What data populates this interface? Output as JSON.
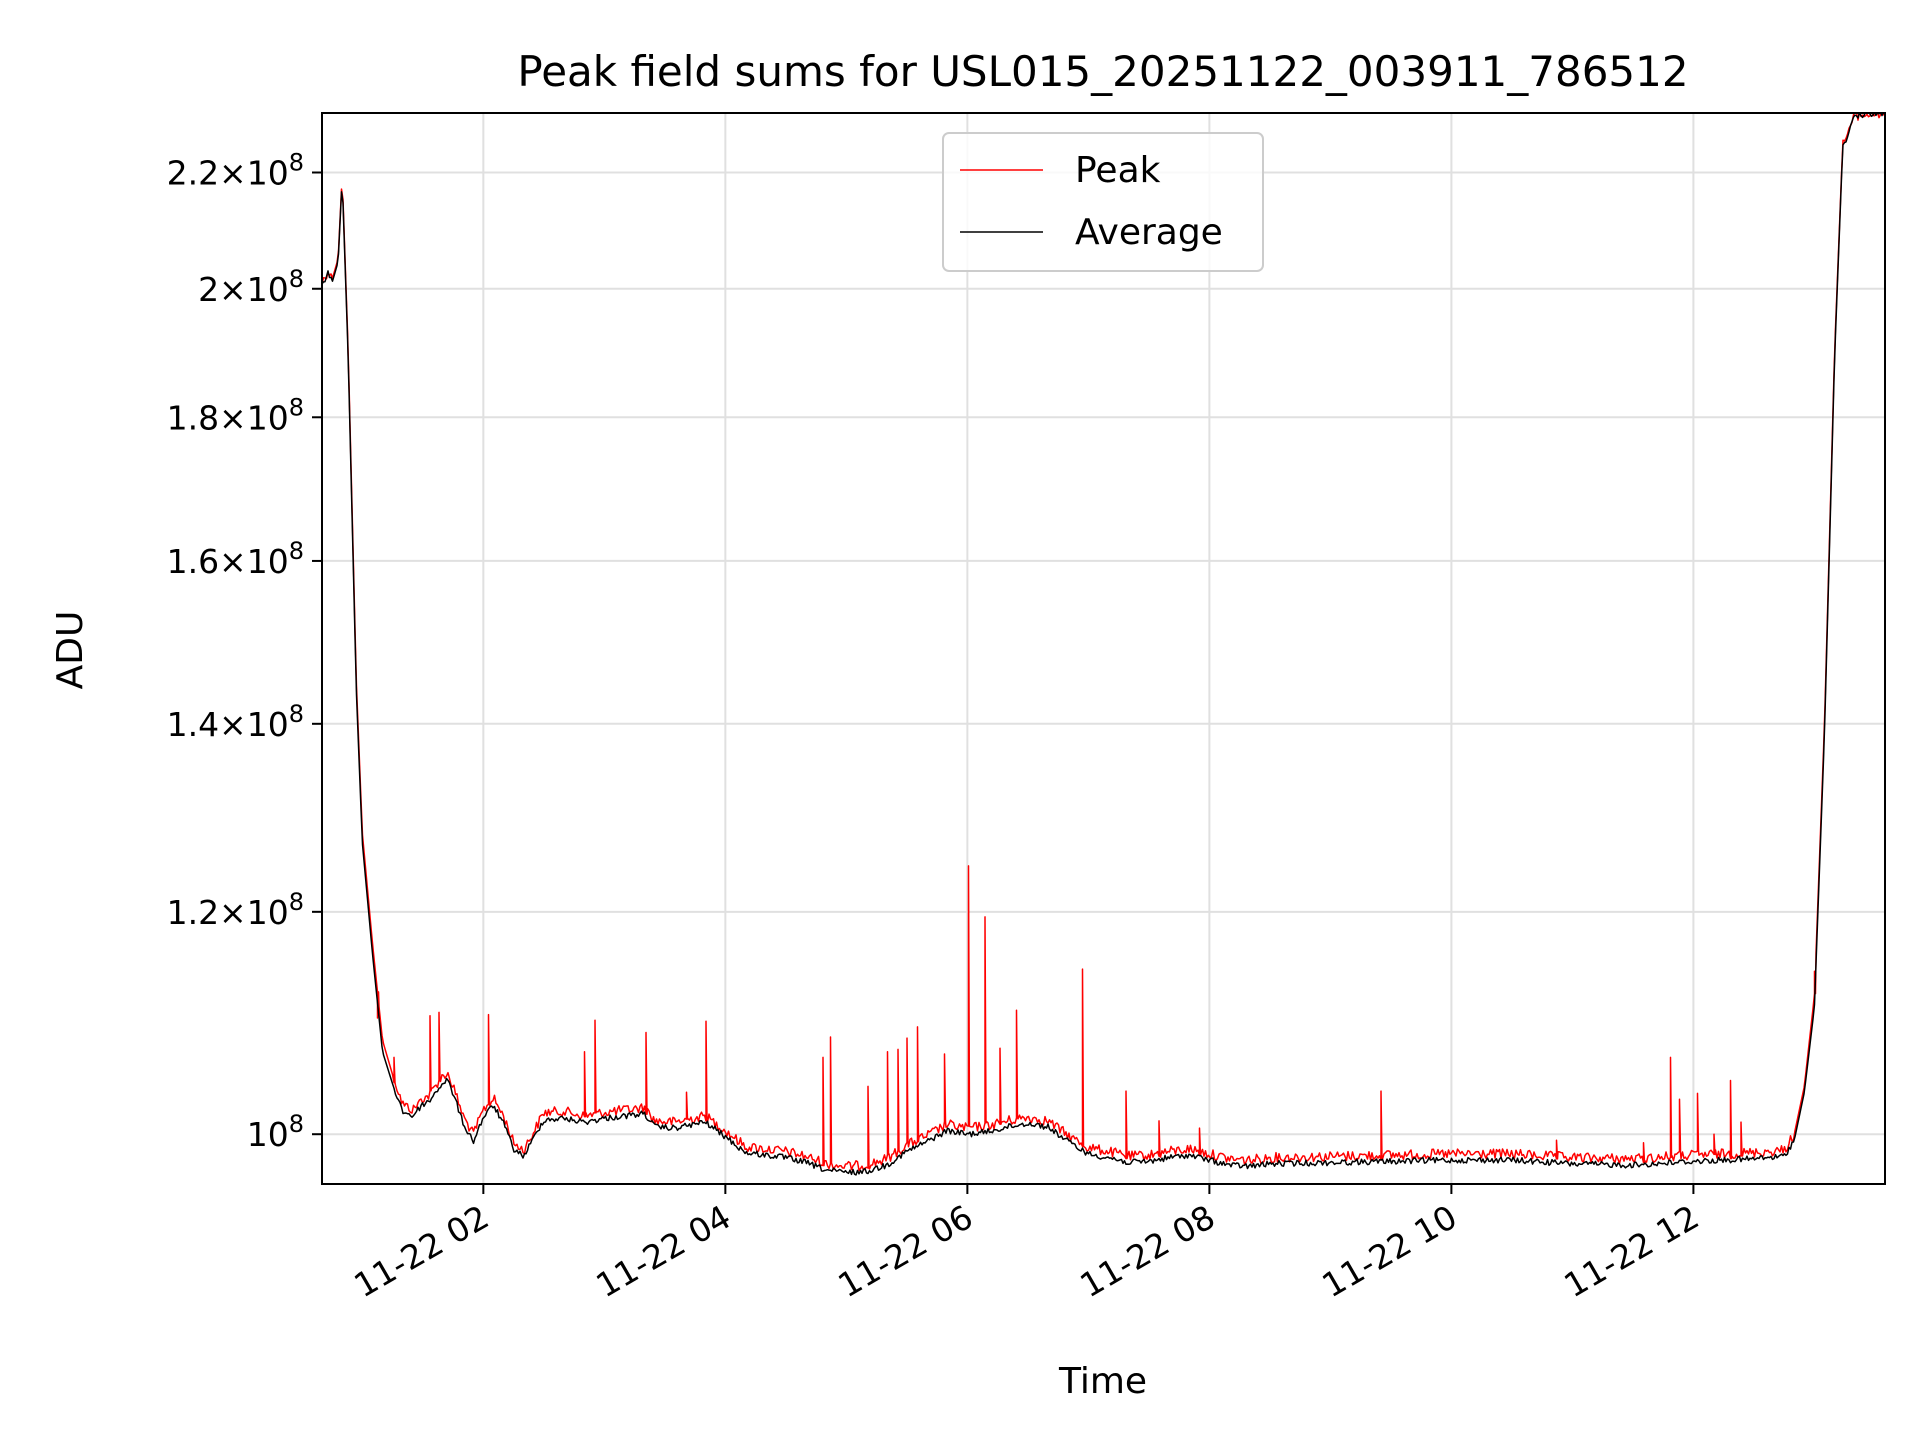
{
  "chart_data": {
    "type": "line",
    "title": "Peak field sums for USL015_20251122_003911_786512",
    "xlabel": "Time",
    "ylabel": "ADU",
    "y_scale": "log",
    "grid": true,
    "legend_position": "top-center",
    "xlim": [
      "2025-11-22 00:40",
      "2025-11-22 13:35"
    ],
    "ylim": [
      96000000,
      231000000
    ],
    "x_ticks": [
      {
        "t": "2025-11-22 02:00",
        "label": "11-22 02"
      },
      {
        "t": "2025-11-22 04:00",
        "label": "11-22 04"
      },
      {
        "t": "2025-11-22 06:00",
        "label": "11-22 06"
      },
      {
        "t": "2025-11-22 08:00",
        "label": "11-22 08"
      },
      {
        "t": "2025-11-22 10:00",
        "label": "11-22 10"
      },
      {
        "t": "2025-11-22 12:00",
        "label": "11-22 12"
      }
    ],
    "y_ticks": [
      {
        "value": 100000000,
        "mantissa": "",
        "exponent": "8"
      },
      {
        "value": 120000000,
        "mantissa": "1.2",
        "exponent": "8"
      },
      {
        "value": 140000000,
        "mantissa": "1.4",
        "exponent": "8"
      },
      {
        "value": 160000000,
        "mantissa": "1.6",
        "exponent": "8"
      },
      {
        "value": 180000000,
        "mantissa": "1.8",
        "exponent": "8"
      },
      {
        "value": 200000000,
        "mantissa": "2",
        "exponent": "8"
      },
      {
        "value": 220000000,
        "mantissa": "2.2",
        "exponent": "8"
      }
    ],
    "series": [
      {
        "name": "Peak",
        "color": "#ff0000",
        "points": [
          [
            "2025-11-22 00:40",
            201000000
          ],
          [
            "2025-11-22 00:43",
            203000000
          ],
          [
            "2025-11-22 00:45",
            201500000
          ],
          [
            "2025-11-22 00:48",
            205000000
          ],
          [
            "2025-11-22 00:50",
            219500000
          ],
          [
            "2025-11-22 00:53",
            190000000
          ],
          [
            "2025-11-22 00:57",
            145000000
          ],
          [
            "2025-11-22 01:00",
            128000000
          ],
          [
            "2025-11-22 01:05",
            117000000
          ],
          [
            "2025-11-22 01:10",
            108000000
          ],
          [
            "2025-11-22 01:15",
            105000000
          ],
          [
            "2025-11-22 01:20",
            102500000
          ],
          [
            "2025-11-22 01:25",
            102000000
          ],
          [
            "2025-11-22 01:30",
            103000000
          ],
          [
            "2025-11-22 01:33",
            103200000
          ],
          [
            "2025-11-22 01:38",
            104500000
          ],
          [
            "2025-11-22 01:42",
            105200000
          ],
          [
            "2025-11-22 01:45",
            104000000
          ],
          [
            "2025-11-22 01:50",
            101500000
          ],
          [
            "2025-11-22 01:55",
            100000000
          ],
          [
            "2025-11-22 02:00",
            102000000
          ],
          [
            "2025-11-22 02:05",
            103000000
          ],
          [
            "2025-11-22 02:10",
            101500000
          ],
          [
            "2025-11-22 02:15",
            99300000
          ],
          [
            "2025-11-22 02:20",
            98700000
          ],
          [
            "2025-11-22 02:25",
            100200000
          ],
          [
            "2025-11-22 02:30",
            101800000
          ],
          [
            "2025-11-22 02:40",
            101900000
          ],
          [
            "2025-11-22 02:50",
            101500000
          ],
          [
            "2025-11-22 03:00",
            101800000
          ],
          [
            "2025-11-22 03:10",
            102000000
          ],
          [
            "2025-11-22 03:20",
            102200000
          ],
          [
            "2025-11-22 03:25",
            101100000
          ],
          [
            "2025-11-22 03:35",
            101000000
          ],
          [
            "2025-11-22 03:50",
            101500000
          ],
          [
            "2025-11-22 04:00",
            100300000
          ],
          [
            "2025-11-22 04:10",
            99000000
          ],
          [
            "2025-11-22 04:20",
            98800000
          ],
          [
            "2025-11-22 04:30",
            98600000
          ],
          [
            "2025-11-22 04:40",
            98200000
          ],
          [
            "2025-11-22 04:50",
            97600000
          ],
          [
            "2025-11-22 05:00",
            97400000
          ],
          [
            "2025-11-22 05:10",
            97500000
          ],
          [
            "2025-11-22 05:20",
            98000000
          ],
          [
            "2025-11-22 05:30",
            99100000
          ],
          [
            "2025-11-22 05:40",
            99900000
          ],
          [
            "2025-11-22 05:50",
            100800000
          ],
          [
            "2025-11-22 06:00",
            100500000
          ],
          [
            "2025-11-22 06:10",
            100700000
          ],
          [
            "2025-11-22 06:20",
            101100000
          ],
          [
            "2025-11-22 06:30",
            101400000
          ],
          [
            "2025-11-22 06:40",
            101100000
          ],
          [
            "2025-11-22 06:50",
            99900000
          ],
          [
            "2025-11-22 07:00",
            98900000
          ],
          [
            "2025-11-22 07:10",
            98600000
          ],
          [
            "2025-11-22 07:20",
            98200000
          ],
          [
            "2025-11-22 07:30",
            98300000
          ],
          [
            "2025-11-22 07:40",
            98600000
          ],
          [
            "2025-11-22 07:50",
            98800000
          ],
          [
            "2025-11-22 08:00",
            98400000
          ],
          [
            "2025-11-22 08:10",
            98000000
          ],
          [
            "2025-11-22 08:20",
            97900000
          ],
          [
            "2025-11-22 08:30",
            98100000
          ],
          [
            "2025-11-22 09:00",
            98200000
          ],
          [
            "2025-11-22 09:30",
            98300000
          ],
          [
            "2025-11-22 10:00",
            98400000
          ],
          [
            "2025-11-22 10:30",
            98400000
          ],
          [
            "2025-11-22 11:00",
            98100000
          ],
          [
            "2025-11-22 11:30",
            98000000
          ],
          [
            "2025-11-22 12:00",
            98300000
          ],
          [
            "2025-11-22 12:30",
            98500000
          ],
          [
            "2025-11-22 12:45",
            98700000
          ],
          [
            "2025-11-22 12:50",
            100000000
          ],
          [
            "2025-11-22 12:55",
            104000000
          ],
          [
            "2025-11-22 13:00",
            112000000
          ],
          [
            "2025-11-22 13:05",
            140000000
          ],
          [
            "2025-11-22 13:10",
            190000000
          ],
          [
            "2025-11-22 13:14",
            225000000
          ],
          [
            "2025-11-22 13:20",
            230500000
          ],
          [
            "2025-11-22 13:35",
            231000000
          ]
        ],
        "spikes": [
          [
            "2025-11-22 01:07",
            110000000
          ],
          [
            "2025-11-22 01:15",
            106500000
          ],
          [
            "2025-11-22 01:33",
            110200000
          ],
          [
            "2025-11-22 01:38",
            110500000
          ],
          [
            "2025-11-22 02:02",
            110300000
          ],
          [
            "2025-11-22 02:50",
            107000000
          ],
          [
            "2025-11-22 02:55",
            109800000
          ],
          [
            "2025-11-22 03:20",
            108700000
          ],
          [
            "2025-11-22 03:40",
            103500000
          ],
          [
            "2025-11-22 03:50",
            109700000
          ],
          [
            "2025-11-22 04:48",
            106500000
          ],
          [
            "2025-11-22 04:52",
            108300000
          ],
          [
            "2025-11-22 05:10",
            104000000
          ],
          [
            "2025-11-22 05:20",
            107000000
          ],
          [
            "2025-11-22 05:25",
            107200000
          ],
          [
            "2025-11-22 05:30",
            108200000
          ],
          [
            "2025-11-22 05:35",
            109200000
          ],
          [
            "2025-11-22 05:48",
            106800000
          ],
          [
            "2025-11-22 06:00",
            124600000
          ],
          [
            "2025-11-22 06:08",
            119500000
          ],
          [
            "2025-11-22 06:16",
            107300000
          ],
          [
            "2025-11-22 06:24",
            110700000
          ],
          [
            "2025-11-22 06:57",
            114500000
          ],
          [
            "2025-11-22 07:18",
            103600000
          ],
          [
            "2025-11-22 07:35",
            101100000
          ],
          [
            "2025-11-22 07:55",
            100500000
          ],
          [
            "2025-11-22 09:25",
            103600000
          ],
          [
            "2025-11-22 10:52",
            99500000
          ],
          [
            "2025-11-22 11:35",
            99300000
          ],
          [
            "2025-11-22 11:48",
            106500000
          ],
          [
            "2025-11-22 11:53",
            102900000
          ],
          [
            "2025-11-22 12:02",
            103400000
          ],
          [
            "2025-11-22 12:10",
            100000000
          ],
          [
            "2025-11-22 12:18",
            104500000
          ],
          [
            "2025-11-22 12:23",
            101000000
          ],
          [
            "2025-11-22 13:00",
            114300000
          ]
        ]
      },
      {
        "name": "Average",
        "color": "#000000",
        "points": [
          [
            "2025-11-22 00:40",
            200500000
          ],
          [
            "2025-11-22 00:43",
            202500000
          ],
          [
            "2025-11-22 00:45",
            201000000
          ],
          [
            "2025-11-22 00:48",
            204500000
          ],
          [
            "2025-11-22 00:50",
            219000000
          ],
          [
            "2025-11-22 00:53",
            189000000
          ],
          [
            "2025-11-22 00:57",
            144000000
          ],
          [
            "2025-11-22 01:00",
            127000000
          ],
          [
            "2025-11-22 01:05",
            116000000
          ],
          [
            "2025-11-22 01:10",
            107000000
          ],
          [
            "2025-11-22 01:15",
            104200000
          ],
          [
            "2025-11-22 01:20",
            101900000
          ],
          [
            "2025-11-22 01:25",
            101500000
          ],
          [
            "2025-11-22 01:30",
            102500000
          ],
          [
            "2025-11-22 01:33",
            102700000
          ],
          [
            "2025-11-22 01:38",
            103900000
          ],
          [
            "2025-11-22 01:42",
            104600000
          ],
          [
            "2025-11-22 01:45",
            103400000
          ],
          [
            "2025-11-22 01:50",
            100900000
          ],
          [
            "2025-11-22 01:55",
            99400000
          ],
          [
            "2025-11-22 02:00",
            101400000
          ],
          [
            "2025-11-22 02:05",
            102400000
          ],
          [
            "2025-11-22 02:10",
            100900000
          ],
          [
            "2025-11-22 02:15",
            98800000
          ],
          [
            "2025-11-22 02:20",
            98200000
          ],
          [
            "2025-11-22 02:25",
            99700000
          ],
          [
            "2025-11-22 02:30",
            101200000
          ],
          [
            "2025-11-22 02:40",
            101300000
          ],
          [
            "2025-11-22 02:50",
            101000000
          ],
          [
            "2025-11-22 03:00",
            101300000
          ],
          [
            "2025-11-22 03:10",
            101500000
          ],
          [
            "2025-11-22 03:20",
            101700000
          ],
          [
            "2025-11-22 03:25",
            100600000
          ],
          [
            "2025-11-22 03:35",
            100500000
          ],
          [
            "2025-11-22 03:50",
            101000000
          ],
          [
            "2025-11-22 04:00",
            99800000
          ],
          [
            "2025-11-22 04:10",
            98500000
          ],
          [
            "2025-11-22 04:20",
            98300000
          ],
          [
            "2025-11-22 04:30",
            98100000
          ],
          [
            "2025-11-22 04:40",
            97700000
          ],
          [
            "2025-11-22 04:50",
            97100000
          ],
          [
            "2025-11-22 05:00",
            96900000
          ],
          [
            "2025-11-22 05:10",
            97000000
          ],
          [
            "2025-11-22 05:20",
            97500000
          ],
          [
            "2025-11-22 05:30",
            98600000
          ],
          [
            "2025-11-22 05:40",
            99400000
          ],
          [
            "2025-11-22 05:50",
            100300000
          ],
          [
            "2025-11-22 06:00",
            100000000
          ],
          [
            "2025-11-22 06:10",
            100200000
          ],
          [
            "2025-11-22 06:20",
            100600000
          ],
          [
            "2025-11-22 06:30",
            100900000
          ],
          [
            "2025-11-22 06:40",
            100600000
          ],
          [
            "2025-11-22 06:50",
            99400000
          ],
          [
            "2025-11-22 07:00",
            98400000
          ],
          [
            "2025-11-22 07:10",
            98100000
          ],
          [
            "2025-11-22 07:20",
            97700000
          ],
          [
            "2025-11-22 07:30",
            97800000
          ],
          [
            "2025-11-22 07:40",
            98100000
          ],
          [
            "2025-11-22 07:50",
            98300000
          ],
          [
            "2025-11-22 08:00",
            97900000
          ],
          [
            "2025-11-22 08:10",
            97500000
          ],
          [
            "2025-11-22 08:20",
            97400000
          ],
          [
            "2025-11-22 08:30",
            97600000
          ],
          [
            "2025-11-22 09:00",
            97700000
          ],
          [
            "2025-11-22 09:30",
            97800000
          ],
          [
            "2025-11-22 10:00",
            97900000
          ],
          [
            "2025-11-22 10:30",
            97900000
          ],
          [
            "2025-11-22 11:00",
            97600000
          ],
          [
            "2025-11-22 11:30",
            97500000
          ],
          [
            "2025-11-22 12:00",
            97800000
          ],
          [
            "2025-11-22 12:30",
            98000000
          ],
          [
            "2025-11-22 12:45",
            98200000
          ],
          [
            "2025-11-22 12:50",
            99500000
          ],
          [
            "2025-11-22 12:55",
            103500000
          ],
          [
            "2025-11-22 13:00",
            111000000
          ],
          [
            "2025-11-22 13:05",
            139000000
          ],
          [
            "2025-11-22 13:10",
            189000000
          ],
          [
            "2025-11-22 13:14",
            224500000
          ],
          [
            "2025-11-22 13:20",
            230500000
          ],
          [
            "2025-11-22 13:35",
            231000000
          ]
        ]
      }
    ]
  }
}
